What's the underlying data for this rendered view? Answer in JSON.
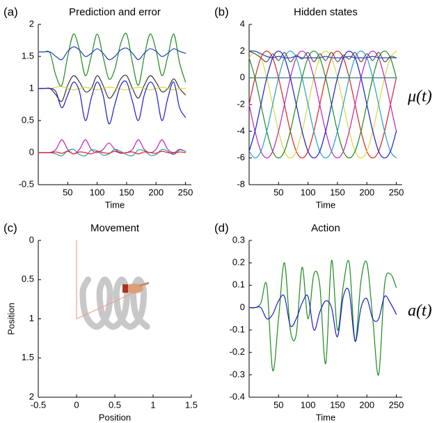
{
  "chart_data": [
    {
      "label": "(a)",
      "type": "line",
      "title": "Prediction and error",
      "xlabel": "Time",
      "x": [
        0,
        10,
        20,
        30,
        40,
        50,
        60,
        70,
        80,
        90,
        100,
        110,
        120,
        130,
        140,
        150,
        160,
        170,
        180,
        190,
        200,
        210,
        220,
        230,
        240,
        250
      ],
      "xlim": [
        0,
        260
      ],
      "xticks": [
        50,
        100,
        150,
        200,
        250
      ],
      "ylim": [
        -0.5,
        2
      ],
      "yticks": [
        -0.5,
        0,
        0.5,
        1,
        1.5,
        2
      ],
      "series": [
        {
          "color": "#1a8a1a",
          "values": [
            1.57,
            1.57,
            1.55,
            1.2,
            1.05,
            1.5,
            1.85,
            1.6,
            1.2,
            1.5,
            1.85,
            1.5,
            1.15,
            1.3,
            1.7,
            1.85,
            1.4,
            1.05,
            1.5,
            1.85,
            1.6,
            1.2,
            1.5,
            1.85,
            1.4,
            1.1
          ]
        },
        {
          "color": "#1f3fbf",
          "values": [
            1.57,
            1.57,
            1.57,
            1.5,
            1.45,
            1.58,
            1.65,
            1.6,
            1.5,
            1.55,
            1.62,
            1.55,
            1.45,
            1.5,
            1.6,
            1.63,
            1.55,
            1.45,
            1.55,
            1.62,
            1.58,
            1.5,
            1.55,
            1.62,
            1.58,
            1.55
          ]
        },
        {
          "color": "#333333",
          "values": [
            1,
            1,
            1,
            0.9,
            0.8,
            1.05,
            1.2,
            1.1,
            0.95,
            1.0,
            1.2,
            1.05,
            0.85,
            0.95,
            1.15,
            1.2,
            1.0,
            0.85,
            1.05,
            1.2,
            1.1,
            0.95,
            1.0,
            1.15,
            1.0,
            0.9
          ]
        },
        {
          "color": "#d8d83a",
          "values": [
            1,
            1,
            1,
            1.02,
            1.03,
            1,
            0.98,
            1,
            1.02,
            1,
            0.98,
            1,
            1.02,
            1.01,
            0.99,
            0.98,
            1,
            1.02,
            1,
            0.98,
            1,
            1.02,
            1,
            0.98,
            1,
            1
          ]
        },
        {
          "color": "#1a1acc",
          "values": [
            1,
            1,
            1,
            0.95,
            0.7,
            0.9,
            1.1,
            0.95,
            0.5,
            0.85,
            1.1,
            0.9,
            0.45,
            0.75,
            1.05,
            1.1,
            0.8,
            0.5,
            0.9,
            1.1,
            0.95,
            0.5,
            0.85,
            1.1,
            0.7,
            0.55
          ]
        },
        {
          "color": "#c020c0",
          "values": [
            0,
            0,
            0,
            0.05,
            0.2,
            0.05,
            -0.02,
            0.05,
            0.2,
            0.05,
            0,
            0.05,
            0.15,
            0.05,
            0,
            0,
            0.05,
            0.2,
            0.05,
            0,
            0.05,
            0.2,
            0.05,
            0,
            0.05,
            0.02
          ]
        },
        {
          "color": "#20a0a0",
          "values": [
            0,
            0,
            0,
            -0.02,
            -0.05,
            0.03,
            0.05,
            -0.03,
            -0.05,
            0.04,
            0.03,
            -0.04,
            -0.02,
            0.05,
            0.02,
            -0.03,
            -0.05,
            0.04,
            0.03,
            -0.04,
            -0.03,
            0.05,
            0.02,
            -0.03,
            0.04,
            0.02
          ]
        },
        {
          "color": "#e02020",
          "values": [
            0,
            0,
            0,
            0.01,
            -0.01,
            0.02,
            -0.02,
            0.01,
            0,
            -0.02,
            0.02,
            0,
            -0.01,
            0.02,
            -0.01,
            0,
            0.01,
            -0.02,
            0.01,
            0,
            -0.01,
            0.02,
            0,
            -0.01,
            0.01,
            0
          ]
        }
      ]
    },
    {
      "label": "(b)",
      "type": "line",
      "title": "Hidden states",
      "xlabel": "Time",
      "annotation": "μ(t)",
      "x": [
        0,
        10,
        20,
        30,
        40,
        50,
        60,
        70,
        80,
        90,
        100,
        110,
        120,
        130,
        140,
        150,
        160,
        170,
        180,
        190,
        200,
        210,
        220,
        230,
        240,
        250
      ],
      "xlim": [
        0,
        260
      ],
      "xticks": [
        50,
        100,
        150,
        200,
        250
      ],
      "ylim": [
        -8,
        4
      ],
      "yticks": [
        -8,
        -6,
        -4,
        -2,
        0,
        2,
        4
      ],
      "series": [
        {
          "color": "#e02020",
          "values": [
            -2,
            0,
            1.5,
            2,
            1.5,
            0,
            -2,
            -4,
            -5.5,
            -6,
            -5.5,
            -4,
            -2,
            0,
            1.5,
            2,
            1.5,
            0,
            -2,
            -4,
            -5.5,
            -6,
            -5.5,
            -4,
            -2,
            0
          ]
        },
        {
          "color": "#d8d83a",
          "values": [
            1.5,
            2,
            1.5,
            0,
            -2,
            -4,
            -5.5,
            -6,
            -5.5,
            -4,
            -2,
            0,
            1.5,
            2,
            1.5,
            0,
            -2,
            -4,
            -5.5,
            -6,
            -5.5,
            -4,
            -2,
            0,
            1.5,
            2
          ]
        },
        {
          "color": "#1a8a1a",
          "values": [
            1.5,
            0,
            -2,
            -4,
            -5.5,
            -6,
            -5.5,
            -4,
            -2,
            0,
            1.5,
            2,
            1.5,
            0,
            -2,
            -4,
            -5.5,
            -6,
            -5.5,
            -4,
            -2,
            0,
            1.5,
            2,
            1.5,
            0
          ]
        },
        {
          "color": "#c020c0",
          "values": [
            -2,
            -4,
            -5.5,
            -6,
            -5.5,
            -4,
            -2,
            0,
            1.5,
            2,
            1.5,
            0,
            -2,
            -4,
            -5.5,
            -6,
            -5.5,
            -4,
            -2,
            0,
            1.5,
            2,
            1.5,
            0,
            -2,
            -4
          ]
        },
        {
          "color": "#20a0c0",
          "values": [
            -5.5,
            -6,
            -5.5,
            -4,
            -2,
            0,
            1.5,
            2,
            1.5,
            0,
            -2,
            -4,
            -5.5,
            -6,
            -5.5,
            -4,
            -2,
            0,
            1.5,
            2,
            1.5,
            0,
            -2,
            -4,
            -5.5,
            -6
          ]
        },
        {
          "color": "#1a1acc",
          "values": [
            -5.5,
            -4,
            -2,
            0,
            1.5,
            2,
            1.5,
            0,
            -2,
            -4,
            -5.5,
            -6,
            -5.5,
            -4,
            -2,
            0,
            1.5,
            2,
            1.5,
            0,
            -2,
            -4,
            -5.5,
            -6,
            -5.5,
            -4
          ]
        },
        {
          "color": "#2f6f6f",
          "values": [
            0,
            0,
            0,
            0,
            0,
            0,
            0,
            0,
            0,
            0,
            0,
            0,
            0,
            0,
            0,
            0,
            0,
            0,
            0,
            0,
            0,
            0,
            0,
            0,
            0,
            0
          ]
        },
        {
          "color": "#555555",
          "values": [
            2,
            1.8,
            1.5,
            1.2,
            1.8,
            1.3,
            1.9,
            1.2,
            1.7,
            1.4,
            1.9,
            1.2,
            1.8,
            1.3,
            1.9,
            1.2,
            1.7,
            1.4,
            1.9,
            1.2,
            1.8,
            1.3,
            1.9,
            1.2,
            1.6,
            1.5
          ]
        },
        {
          "color": "#1f3fbf",
          "values": [
            2,
            2,
            1.8,
            1.6,
            1.5,
            1.6,
            1.5,
            1.5,
            1.6,
            1.5,
            1.5,
            1.5,
            1.5,
            1.6,
            1.5,
            1.5,
            1.5,
            1.6,
            1.5,
            1.5,
            1.5,
            1.6,
            1.5,
            1.5,
            1.5,
            1.5
          ]
        }
      ]
    },
    {
      "label": "(c)",
      "type": "line",
      "title": "Movement",
      "xlabel": "Position",
      "ylabel": "Position",
      "xlim": [
        -0.5,
        1.5
      ],
      "xticks": [
        -0.5,
        0,
        0.5,
        1,
        1.5
      ],
      "ylim": [
        2,
        0
      ],
      "yticks": [
        0,
        0.5,
        1,
        1.5,
        2
      ],
      "series": [
        {
          "color": "#c8c8c8",
          "x": [
            0.15,
            0.083,
            0.119,
            0.26,
            0.4,
            0.437,
            0.37,
            0.302,
            0.339,
            0.48,
            0.62,
            0.657,
            0.59,
            0.522,
            0.559,
            0.7,
            0.84,
            0.877,
            0.81,
            0.742,
            0.779,
            0.92
          ],
          "values": [
            0.5,
            0.65,
            0.95,
            1.1,
            0.95,
            0.65,
            0.5,
            0.65,
            0.95,
            1.1,
            0.95,
            0.65,
            0.5,
            0.65,
            0.95,
            1.1,
            0.95,
            0.65,
            0.5,
            0.65,
            0.95,
            1.1
          ]
        },
        {
          "color": "#e8a090",
          "x": [
            0,
            0,
            0.85
          ],
          "values": [
            0,
            1,
            0.62
          ]
        }
      ]
    },
    {
      "label": "(d)",
      "type": "line",
      "title": "Action",
      "xlabel": "Time",
      "annotation": "a(t)",
      "x": [
        0,
        10,
        20,
        30,
        40,
        50,
        60,
        70,
        80,
        90,
        100,
        110,
        120,
        130,
        140,
        150,
        160,
        170,
        180,
        190,
        200,
        210,
        220,
        230,
        240,
        250
      ],
      "xlim": [
        0,
        260
      ],
      "xticks": [
        50,
        100,
        150,
        200,
        250
      ],
      "ylim": [
        -0.4,
        0.3
      ],
      "yticks": [
        -0.4,
        -0.3,
        -0.2,
        -0.1,
        0,
        0.1,
        0.2,
        0.3
      ],
      "series": [
        {
          "color": "#1a8a1a",
          "values": [
            0,
            0,
            0.02,
            0.1,
            -0.28,
            -0.05,
            0.2,
            -0.1,
            -0.12,
            0.18,
            -0.05,
            0.15,
            0.1,
            -0.25,
            0.21,
            -0.1,
            0.1,
            0.2,
            -0.15,
            0.12,
            0.2,
            -0.05,
            -0.3,
            0.1,
            0.15,
            0.09
          ]
        },
        {
          "color": "#1a1acc",
          "values": [
            0,
            0,
            0,
            -0.05,
            -0.03,
            0.03,
            0.05,
            -0.08,
            -0.05,
            0.02,
            0.05,
            -0.1,
            -0.02,
            0.03,
            0,
            -0.13,
            0.05,
            0.07,
            -0.15,
            0,
            0.04,
            -0.05,
            -0.05,
            0.05,
            0.02,
            -0.03
          ]
        }
      ]
    }
  ]
}
